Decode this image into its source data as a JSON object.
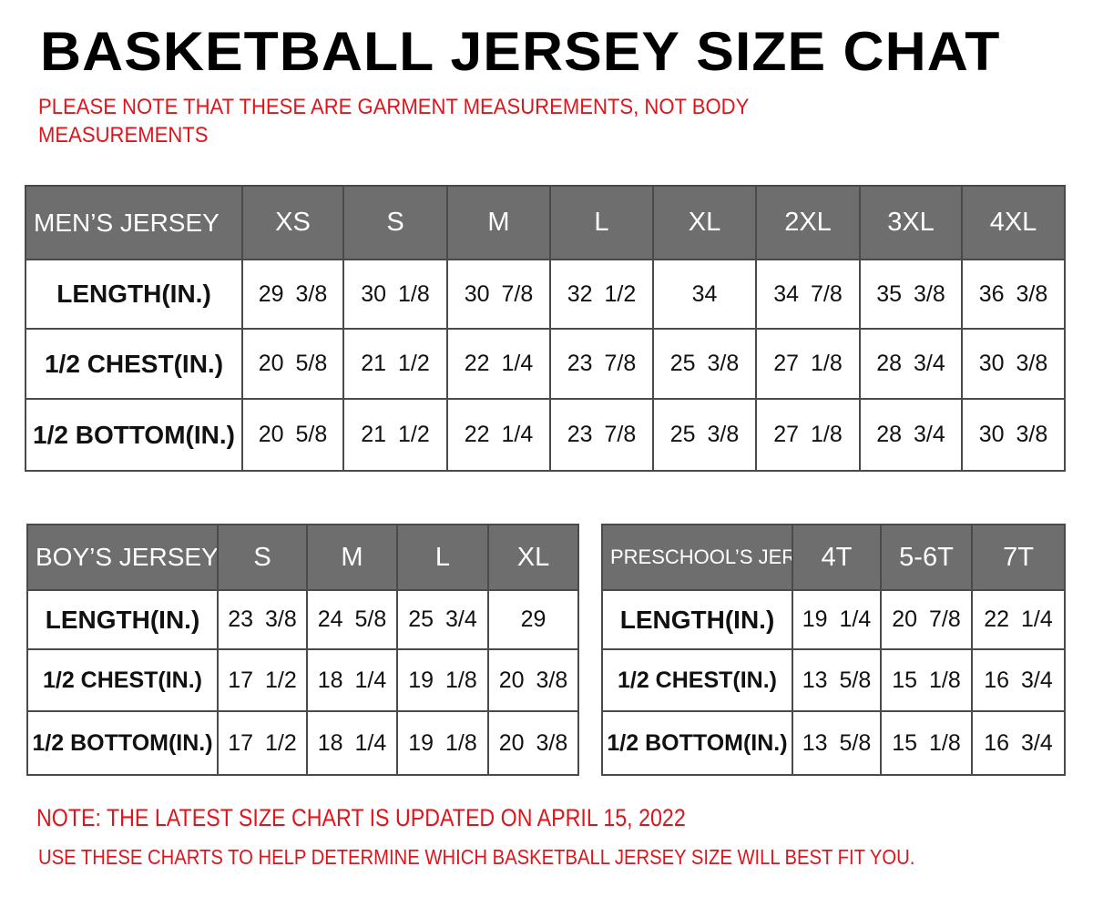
{
  "title": "BASKETBALL JERSEY SIZE CHAT",
  "notice": [
    "PLEASE NOTE THAT THESE ARE GARMENT MEASUREMENTS, NOT BODY",
    "MEASUREMENTS"
  ],
  "colors": {
    "header_bg": "#6e6e6e",
    "note_red": "#e0141b",
    "border": "#4a4a4a"
  },
  "tables": {
    "mens": {
      "header": [
        "MEN’S JERSEY",
        "XS",
        "S",
        "M",
        "L",
        "XL",
        "2XL",
        "3XL",
        "4XL"
      ],
      "rows": [
        [
          "LENGTH(IN.)",
          "29 3/8",
          "30 1/8",
          "30 7/8",
          "32 1/2",
          "34",
          "34 7/8",
          "35 3/8",
          "36 3/8"
        ],
        [
          "1/2 CHEST(IN.)",
          "20 5/8",
          "21 1/2",
          "22 1/4",
          "23 7/8",
          "25 3/8",
          "27 1/8",
          "28 3/4",
          "30 3/8"
        ],
        [
          "1/2 BOTTOM(IN.)",
          "20 5/8",
          "21 1/2",
          "22 1/4",
          "23 7/8",
          "25 3/8",
          "27 1/8",
          "28 3/4",
          "30 3/8"
        ]
      ]
    },
    "boys": {
      "header": [
        "BOY’S JERSEY",
        "S",
        "M",
        "L",
        "XL"
      ],
      "rows": [
        [
          "LENGTH(IN.)",
          "23 3/8",
          "24 5/8",
          "25 3/4",
          "29"
        ],
        [
          "1/2 CHEST(IN.)",
          "17 1/2",
          "18 1/4",
          "19 1/8",
          "20 3/8"
        ],
        [
          "1/2 BOTTOM(IN.)",
          "17 1/2",
          "18 1/4",
          "19 1/8",
          "20 3/8"
        ]
      ]
    },
    "preschool": {
      "header": [
        "PRESCHOOL’S JERSEY",
        "4T",
        "5-6T",
        "7T"
      ],
      "rows": [
        [
          "LENGTH(IN.)",
          "19 1/4",
          "20 7/8",
          "22 1/4"
        ],
        [
          "1/2 CHEST(IN.)",
          "13 5/8",
          "15 1/8",
          "16 3/4"
        ],
        [
          "1/2 BOTTOM(IN.)",
          "13 5/8",
          "15 1/8",
          "16 3/4"
        ]
      ]
    }
  },
  "footer": {
    "update_note": "NOTE: THE LATEST SIZE CHART IS UPDATED ON APRIL 15, 2022",
    "usage_note": "USE THESE CHARTS TO HELP DETERMINE WHICH  BASKETBALL JERSEY  SIZE WILL BEST FIT YOU."
  }
}
